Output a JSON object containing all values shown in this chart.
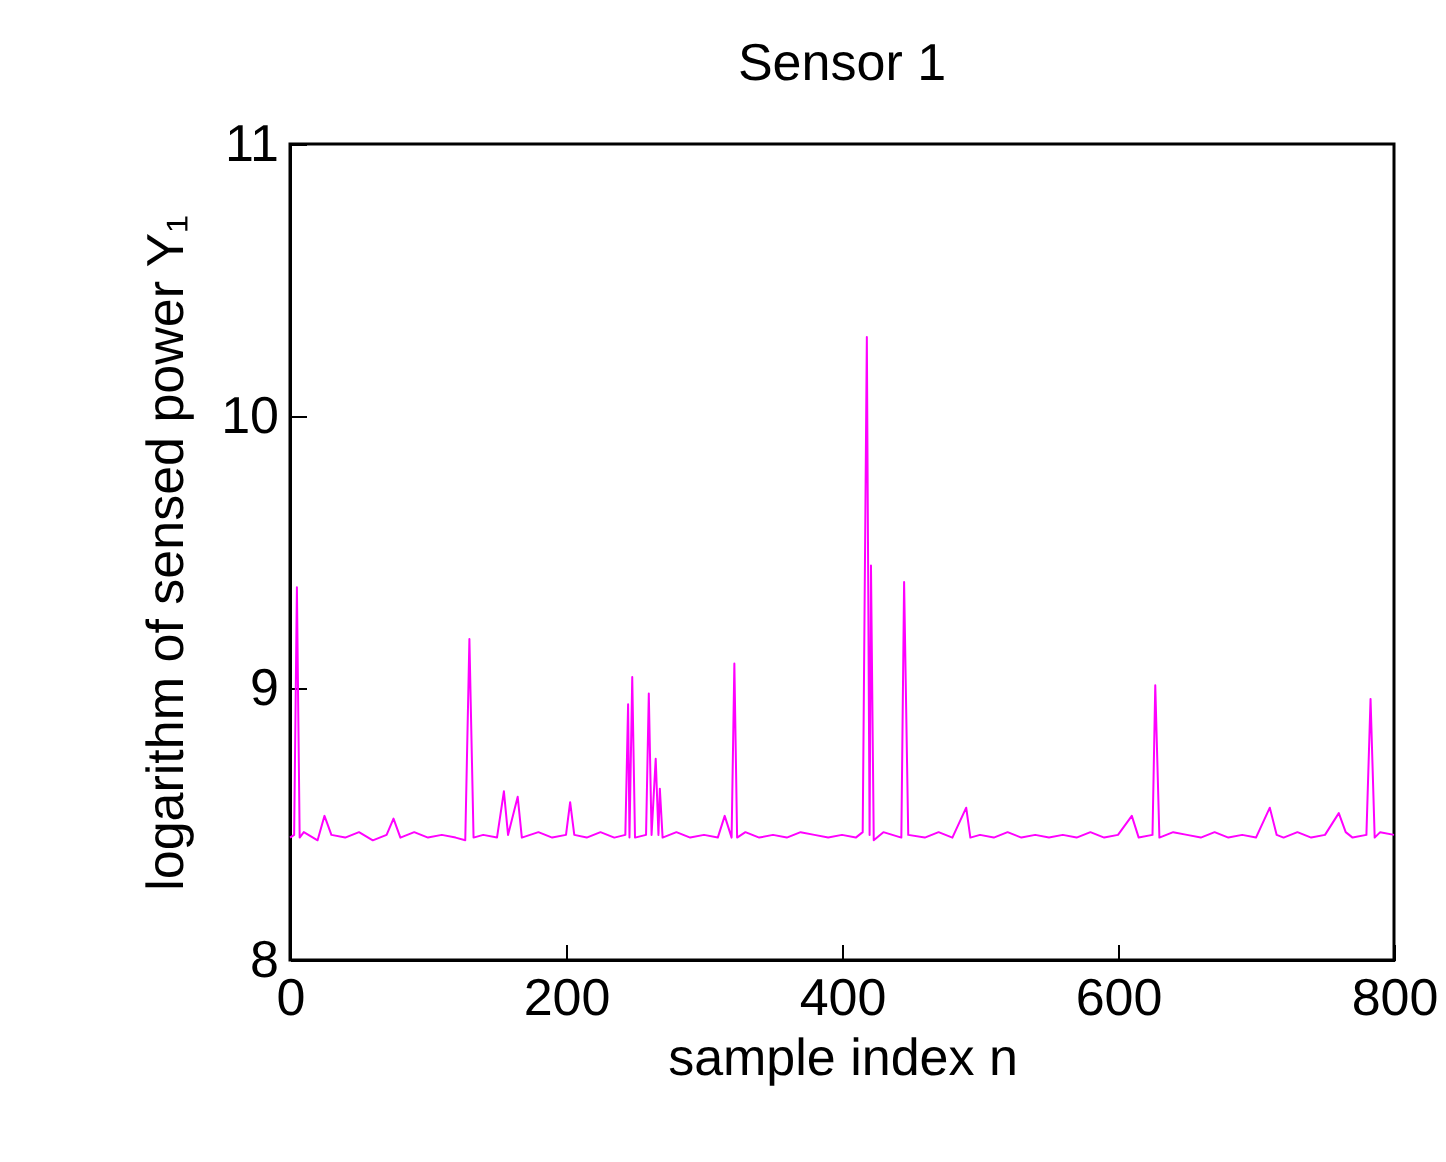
{
  "chart_data": {
    "type": "line",
    "title": "Sensor 1",
    "xlabel": "sample index n",
    "ylabel": "logarithm of sensed power Y₁",
    "x": [
      0,
      3,
      5,
      7,
      10,
      20,
      25,
      30,
      40,
      50,
      60,
      70,
      75,
      80,
      90,
      100,
      110,
      120,
      127,
      130,
      133,
      140,
      150,
      155,
      158,
      165,
      168,
      180,
      190,
      200,
      203,
      206,
      215,
      225,
      235,
      243,
      245,
      246,
      248,
      250,
      258,
      260,
      262,
      265,
      267,
      268,
      270,
      280,
      290,
      300,
      310,
      315,
      320,
      322,
      324,
      330,
      340,
      350,
      360,
      370,
      380,
      390,
      400,
      410,
      415,
      418,
      420,
      421,
      423,
      430,
      443,
      445,
      448,
      460,
      470,
      480,
      490,
      493,
      500,
      510,
      520,
      530,
      540,
      550,
      560,
      570,
      580,
      590,
      600,
      610,
      615,
      625,
      627,
      630,
      640,
      650,
      660,
      670,
      680,
      690,
      700,
      710,
      715,
      720,
      730,
      740,
      750,
      760,
      765,
      770,
      780,
      783,
      786,
      790,
      800
    ],
    "series": [
      {
        "color": "#ff00ff",
        "values": [
          8.45,
          8.46,
          9.37,
          8.45,
          8.47,
          8.44,
          8.53,
          8.46,
          8.45,
          8.47,
          8.44,
          8.46,
          8.52,
          8.45,
          8.47,
          8.45,
          8.46,
          8.45,
          8.44,
          9.18,
          8.45,
          8.46,
          8.45,
          8.62,
          8.46,
          8.6,
          8.45,
          8.47,
          8.45,
          8.46,
          8.58,
          8.46,
          8.45,
          8.47,
          8.45,
          8.46,
          8.94,
          8.45,
          9.04,
          8.45,
          8.46,
          8.98,
          8.46,
          8.74,
          8.46,
          8.63,
          8.45,
          8.47,
          8.45,
          8.46,
          8.45,
          8.53,
          8.45,
          9.09,
          8.45,
          8.47,
          8.45,
          8.46,
          8.45,
          8.47,
          8.46,
          8.45,
          8.46,
          8.45,
          8.47,
          10.29,
          8.46,
          9.45,
          8.44,
          8.47,
          8.45,
          9.39,
          8.46,
          8.45,
          8.47,
          8.45,
          8.56,
          8.45,
          8.46,
          8.45,
          8.47,
          8.45,
          8.46,
          8.45,
          8.46,
          8.45,
          8.47,
          8.45,
          8.46,
          8.53,
          8.45,
          8.46,
          9.01,
          8.45,
          8.47,
          8.46,
          8.45,
          8.47,
          8.45,
          8.46,
          8.45,
          8.56,
          8.46,
          8.45,
          8.47,
          8.45,
          8.46,
          8.54,
          8.47,
          8.45,
          8.46,
          8.96,
          8.45,
          8.47,
          8.46
        ]
      }
    ],
    "xlim": [
      0,
      800
    ],
    "xticks": [
      0,
      200,
      400,
      600,
      800
    ],
    "ylim": [
      8,
      11
    ],
    "yticks": [
      8,
      9,
      10,
      11
    ],
    "grid": false,
    "marker": "none",
    "line_style": "solid"
  }
}
